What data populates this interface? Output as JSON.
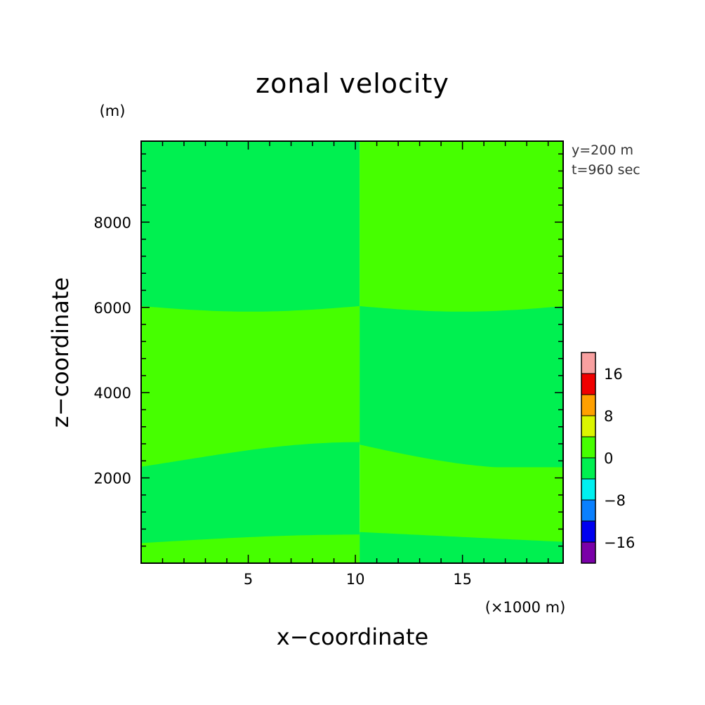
{
  "chart_data": {
    "type": "heatmap",
    "title": "zonal velocity",
    "xlabel": "x−coordinate",
    "ylabel": "z−coordinate",
    "x_unit": "(×1000 m)",
    "y_unit": "(m)",
    "annotations": [
      "y=200 m",
      "t=960 sec"
    ],
    "xlim": [
      0,
      19.7
    ],
    "ylim": [
      0,
      9900
    ],
    "x_ticks": [
      {
        "value": 5,
        "label": "5"
      },
      {
        "value": 10,
        "label": "10"
      },
      {
        "value": 15,
        "label": "15"
      }
    ],
    "y_ticks": [
      {
        "value": 2000,
        "label": "2000"
      },
      {
        "value": 4000,
        "label": "4000"
      },
      {
        "value": 6000,
        "label": "6000"
      },
      {
        "value": 8000,
        "label": "8000"
      }
    ],
    "x_minor_step": 1,
    "y_minor_step": 400,
    "colorbar": {
      "levels": [
        -20,
        -16,
        -12,
        -8,
        -4,
        0,
        4,
        8,
        12,
        16,
        20
      ],
      "colors": [
        "#7a00a8",
        "#0000f0",
        "#0a80ff",
        "#00f0f0",
        "#00f050",
        "#46ff00",
        "#dcf500",
        "#ffa000",
        "#f00000",
        "#f8a0a0"
      ],
      "tick_labels": [
        {
          "value": -16,
          "label": "−16"
        },
        {
          "value": -8,
          "label": "−8"
        },
        {
          "value": 0,
          "label": "0"
        },
        {
          "value": 8,
          "label": "8"
        },
        {
          "value": 16,
          "label": "16"
        }
      ]
    },
    "region_colors": {
      "weak_negative": "#00f050",
      "weak_positive": "#46ff00"
    },
    "field_layers": {
      "left_half": [
        {
          "z_top": 9900,
          "z_bottom": 6050,
          "sign": "negative"
        },
        {
          "z_top": 6050,
          "z_bottom": 2600,
          "sign": "positive"
        },
        {
          "z_top": 2600,
          "z_bottom": 650,
          "sign": "negative"
        },
        {
          "z_top": 650,
          "z_bottom": 0,
          "sign": "positive"
        }
      ],
      "right_half": [
        {
          "z_top": 9900,
          "z_bottom": 6050,
          "sign": "positive"
        },
        {
          "z_top": 6050,
          "z_bottom": 2600,
          "sign": "negative"
        },
        {
          "z_top": 2600,
          "z_bottom": 650,
          "sign": "positive"
        },
        {
          "z_top": 650,
          "z_bottom": 0,
          "sign": "negative"
        }
      ],
      "discontinuity_x": 10.2
    }
  }
}
